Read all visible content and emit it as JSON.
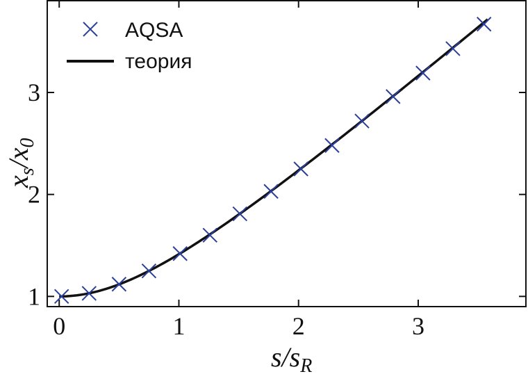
{
  "chart_data": {
    "type": "scatter",
    "xlabel": {
      "main": "s/s",
      "sub": "R"
    },
    "ylabel": {
      "main": "x",
      "sub1": "s",
      "mid": "/x",
      "sub2": "0"
    },
    "xlim": [
      -0.1,
      3.9
    ],
    "ylim": [
      0.9,
      3.9
    ],
    "xticks": [
      0,
      1,
      2,
      3
    ],
    "yticks": [
      1,
      2,
      3
    ],
    "xtick_labels": [
      "0",
      "1",
      "2",
      "3"
    ],
    "ytick_labels": [
      "1",
      "2",
      "3"
    ],
    "grid": false,
    "legend_position": "top-left",
    "legend": [
      {
        "label": "AQSA",
        "marker": "x",
        "color": "#2b3f9a"
      },
      {
        "label": "теория",
        "marker": "line",
        "color": "#111111"
      }
    ],
    "series": [
      {
        "name": "AQSA",
        "kind": "markers",
        "color": "#2b3f9a",
        "points": [
          [
            0.02,
            1.0
          ],
          [
            0.25,
            1.03
          ],
          [
            0.5,
            1.12
          ],
          [
            0.75,
            1.25
          ],
          [
            1.01,
            1.42
          ],
          [
            1.26,
            1.6
          ],
          [
            1.51,
            1.81
          ],
          [
            1.77,
            2.03
          ],
          [
            2.02,
            2.25
          ],
          [
            2.28,
            2.48
          ],
          [
            2.53,
            2.72
          ],
          [
            2.79,
            2.96
          ],
          [
            3.04,
            3.19
          ],
          [
            3.29,
            3.43
          ],
          [
            3.55,
            3.67
          ]
        ]
      },
      {
        "name": "теория",
        "kind": "line",
        "color": "#111111",
        "formula": "sqrt(1 + x^2)",
        "x_range": [
          0,
          3.58
        ]
      }
    ]
  }
}
